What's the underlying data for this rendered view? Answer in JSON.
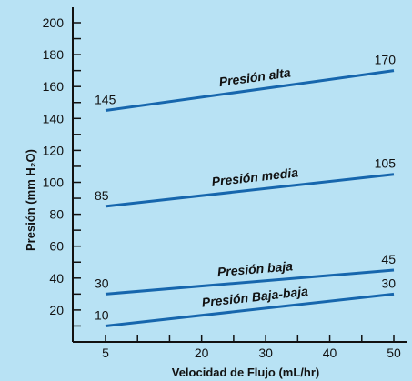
{
  "chart_data": {
    "type": "line",
    "title": "",
    "xlabel": "Velocidad de Flujo (mL/hr)",
    "ylabel": "Presión (mm H₂O)",
    "xlim": [
      0,
      52
    ],
    "ylim": [
      0,
      205
    ],
    "x_ticks": [
      5,
      20,
      30,
      40,
      50
    ],
    "x_minor_ticks": [
      10,
      15,
      25,
      35,
      45
    ],
    "y_ticks": [
      20,
      40,
      60,
      80,
      100,
      120,
      140,
      160,
      180,
      200
    ],
    "y_minor_ticks": [
      10,
      30,
      50,
      70,
      90,
      110,
      130,
      150,
      170,
      190
    ],
    "grid": false,
    "line_color": "#1666ad",
    "background_color": "#b8e2f4",
    "series": [
      {
        "name": "Presión alta",
        "x": [
          5,
          50
        ],
        "values": [
          145,
          170
        ],
        "start_label": "145",
        "end_label": "170"
      },
      {
        "name": "Presión media",
        "x": [
          5,
          50
        ],
        "values": [
          85,
          105
        ],
        "start_label": "85",
        "end_label": "105"
      },
      {
        "name": "Presión baja",
        "x": [
          5,
          50
        ],
        "values": [
          30,
          45
        ],
        "start_label": "30",
        "end_label": "45"
      },
      {
        "name": "Presión Baja-baja",
        "x": [
          5,
          50
        ],
        "values": [
          10,
          30
        ],
        "start_label": "10",
        "end_label": "30"
      }
    ]
  }
}
